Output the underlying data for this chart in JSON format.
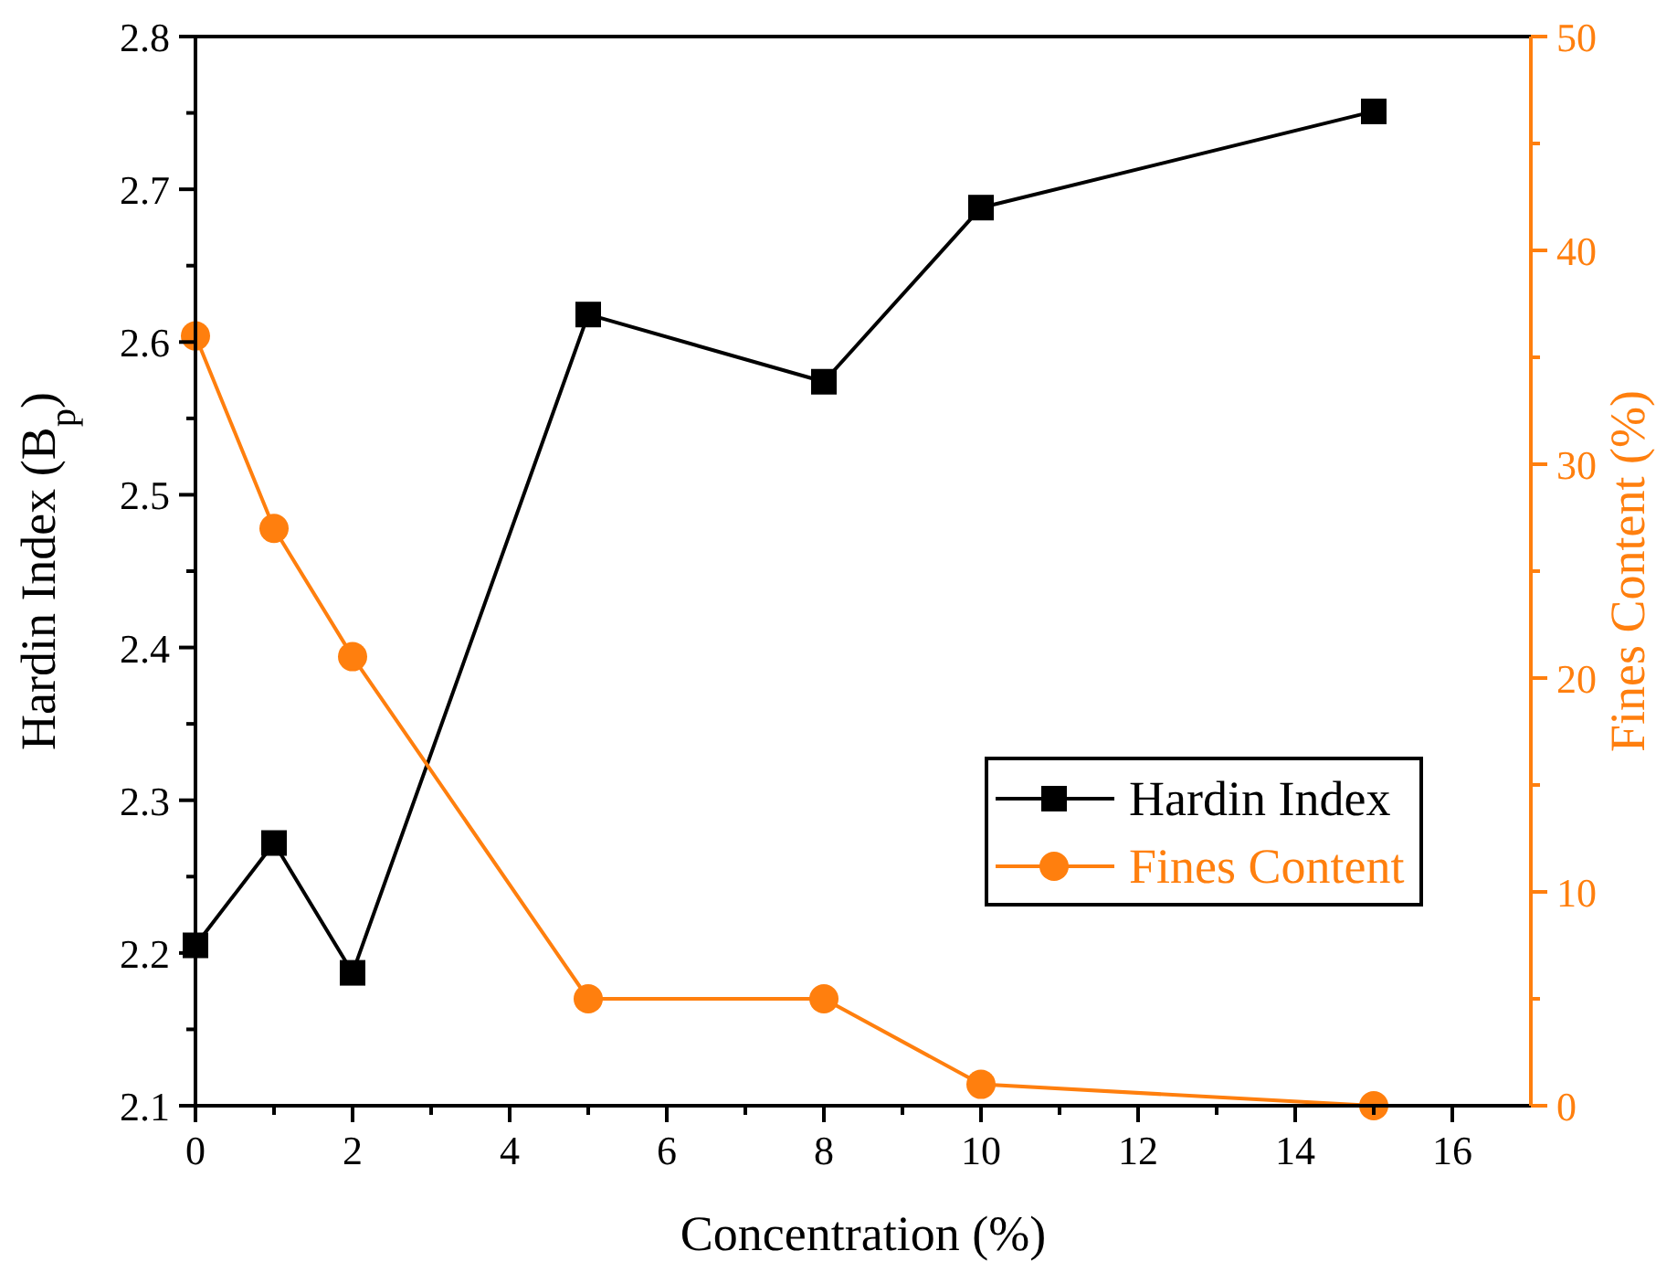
{
  "chart_data": {
    "type": "line",
    "xlabel": "Concentration (%)",
    "ylabel": "Hardin Index (B$_{p}$)",
    "y2label": "Fines Content (%)",
    "x": [
      0,
      1,
      2,
      5,
      8,
      10,
      15
    ],
    "xlim": [
      0,
      17
    ],
    "xticks": [
      0,
      {
        "value": 1,
        "label": null
      },
      2,
      {
        "value": 3,
        "label": null
      },
      4,
      {
        "value": 5,
        "label": null
      },
      6,
      {
        "value": 7,
        "label": null
      },
      8,
      {
        "value": 9,
        "label": null
      },
      10,
      {
        "value": 11,
        "label": null
      },
      12,
      {
        "value": 13,
        "label": null
      },
      14,
      {
        "value": 15,
        "label": null
      },
      16
    ],
    "ylim": [
      2.1,
      2.8
    ],
    "yticks": [
      2.1,
      {
        "value": 2.15,
        "label": null
      },
      2.2,
      {
        "value": 2.25,
        "label": null
      },
      2.3,
      {
        "value": 2.35,
        "label": null
      },
      2.4,
      {
        "value": 2.45,
        "label": null
      },
      2.5,
      {
        "value": 2.55,
        "label": null
      },
      2.6,
      {
        "value": 2.65,
        "label": null
      },
      2.7,
      {
        "value": 2.75,
        "label": null
      },
      2.8
    ],
    "y2lim": [
      0,
      50
    ],
    "y2ticks": [
      0,
      {
        "value": 5,
        "label": null
      },
      10,
      {
        "value": 15,
        "label": null
      },
      20,
      {
        "value": 25,
        "label": null
      },
      30,
      {
        "value": 35,
        "label": null
      },
      40,
      {
        "value": 45,
        "label": null
      },
      50
    ],
    "series": [
      {
        "name": "Hardin Index",
        "color": "#000000",
        "marker": "square",
        "values": [
          2.205,
          2.272,
          2.187,
          2.618,
          2.574,
          2.688,
          2.751
        ]
      },
      {
        "name": "Fines Content",
        "color": "#ff7f0e",
        "marker": "circle",
        "axis": "y2",
        "values": [
          36,
          27,
          21,
          5,
          5,
          1,
          0
        ]
      }
    ],
    "legend": "bottom right",
    "grid": false,
    "line_style": "solid"
  }
}
